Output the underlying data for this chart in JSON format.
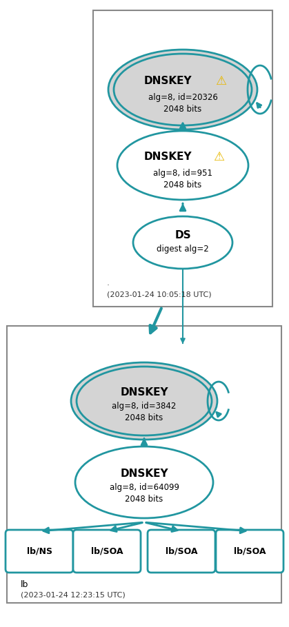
{
  "teal": "#2196A0",
  "bg": "#ffffff",
  "gray_fill": "#d4d4d4",
  "white_fill": "#ffffff",
  "fig_width": 4.19,
  "fig_height": 9.1,
  "top_label_dot": ".",
  "top_label_date": "(2023-01-24 10:05:18 UTC)",
  "bottom_label_zone": "lb",
  "bottom_label_date": "(2023-01-24 12:23:15 UTC)"
}
